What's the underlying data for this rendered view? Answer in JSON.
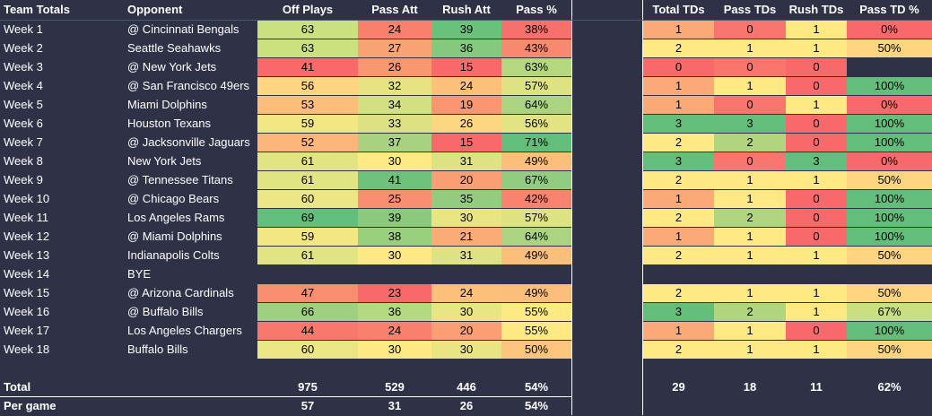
{
  "headers": {
    "team": "Team Totals",
    "opponent": "Opponent",
    "off_plays": "Off Plays",
    "pass_att": "Pass Att",
    "rush_att": "Rush Att",
    "pass_pct": "Pass %",
    "total_tds": "Total TDs",
    "pass_tds": "Pass TDs",
    "rush_tds": "Rush TDs",
    "pass_td_pct": "Pass TD %"
  },
  "rows": [
    {
      "week": "Week 1",
      "opp": "@ Cincinnati Bengals",
      "off": "63",
      "pa": "24",
      "ra": "39",
      "pp": "38%",
      "tt": "1",
      "pt": "0",
      "rt": "1",
      "ptp": "0%",
      "colors": [
        "#cbe07f",
        "#f8806c",
        "#6ac17a",
        "#f8706b",
        "#fba977",
        "#f8756d",
        "#fee983",
        "#f8696b"
      ]
    },
    {
      "week": "Week 2",
      "opp": "Seattle Seahawks",
      "off": "63",
      "pa": "27",
      "ra": "36",
      "pp": "43%",
      "tt": "2",
      "pt": "1",
      "rt": "1",
      "ptp": "50%",
      "colors": [
        "#cbe07f",
        "#f9a373",
        "#84c97d",
        "#f8896f",
        "#ffe984",
        "#ffe984",
        "#fee983",
        "#fdd580"
      ]
    },
    {
      "week": "Week 3",
      "opp": "@ New York Jets",
      "off": "41",
      "pa": "26",
      "ra": "15",
      "pp": "63%",
      "tt": "0",
      "pt": "0",
      "rt": "0",
      "ptp": "",
      "colors": [
        "#f8696b",
        "#f9976f",
        "#f8696b",
        "#b5d87f",
        "#f8696b",
        "#f8756d",
        "#f8696b",
        ""
      ]
    },
    {
      "week": "Week 4",
      "opp": "@ San Francisco 49ers",
      "off": "56",
      "pa": "32",
      "ra": "24",
      "pp": "57%",
      "tt": "1",
      "pt": "1",
      "rt": "0",
      "ptp": "100%",
      "colors": [
        "#fdd580",
        "#e6e482",
        "#fcc07b",
        "#dde382",
        "#fba977",
        "#ffe984",
        "#f8696b",
        "#63be7b"
      ]
    },
    {
      "week": "Week 5",
      "opp": "Miami Dolphins",
      "off": "53",
      "pa": "34",
      "ra": "19",
      "pp": "64%",
      "tt": "1",
      "pt": "0",
      "rt": "1",
      "ptp": "0%",
      "colors": [
        "#fcbd7b",
        "#d3e081",
        "#f99671",
        "#aad480",
        "#fba977",
        "#f8756d",
        "#fee983",
        "#f8696b"
      ]
    },
    {
      "week": "Week 6",
      "opp": "Houston Texans",
      "off": "59",
      "pa": "33",
      "ra": "26",
      "pp": "56%",
      "tt": "3",
      "pt": "3",
      "rt": "0",
      "ptp": "100%",
      "colors": [
        "#f3e783",
        "#dce282",
        "#fdd680",
        "#e2e383",
        "#63be7b",
        "#63be7b",
        "#f8696b",
        "#63be7b"
      ]
    },
    {
      "week": "Week 7",
      "opp": "@ Jacksonville Jaguars",
      "off": "52",
      "pa": "37",
      "ra": "15",
      "pp": "71%",
      "tt": "2",
      "pt": "2",
      "rt": "0",
      "ptp": "100%",
      "colors": [
        "#fbb479",
        "#a8d27f",
        "#f8696b",
        "#63be7b",
        "#ffe984",
        "#b1d57f",
        "#f8696b",
        "#63be7b"
      ]
    },
    {
      "week": "Week 8",
      "opp": "New York Jets",
      "off": "61",
      "pa": "30",
      "ra": "31",
      "pp": "49%",
      "tt": "3",
      "pt": "0",
      "rt": "3",
      "ptp": "0%",
      "colors": [
        "#e1e483",
        "#ffe984",
        "#dde382",
        "#fcbf7b",
        "#63be7b",
        "#f8756d",
        "#63be7b",
        "#f8696b"
      ]
    },
    {
      "week": "Week 9",
      "opp": "@ Tennessee Titans",
      "off": "61",
      "pa": "41",
      "ra": "20",
      "pp": "67%",
      "tt": "2",
      "pt": "1",
      "rt": "1",
      "ptp": "50%",
      "colors": [
        "#e1e483",
        "#6ec17b",
        "#fa9f74",
        "#92cc7e",
        "#ffe984",
        "#ffe984",
        "#fee983",
        "#fdd580"
      ]
    },
    {
      "week": "Week 10",
      "opp": "@ Chicago Bears",
      "off": "60",
      "pa": "25",
      "ra": "35",
      "pp": "42%",
      "tt": "1",
      "pt": "1",
      "rt": "0",
      "ptp": "100%",
      "colors": [
        "#ebe583",
        "#f98f70",
        "#93cc7e",
        "#f8836e",
        "#fba977",
        "#ffe984",
        "#f8696b",
        "#63be7b"
      ]
    },
    {
      "week": "Week 11",
      "opp": "Los Angeles Rams",
      "off": "69",
      "pa": "39",
      "ra": "30",
      "pp": "57%",
      "tt": "2",
      "pt": "2",
      "rt": "0",
      "ptp": "100%",
      "colors": [
        "#63be7b",
        "#8bc97e",
        "#eae583",
        "#dde382",
        "#ffe984",
        "#b1d57f",
        "#f8696b",
        "#63be7b"
      ]
    },
    {
      "week": "Week 12",
      "opp": "@ Miami Dolphins",
      "off": "59",
      "pa": "38",
      "ra": "21",
      "pp": "64%",
      "tt": "1",
      "pt": "1",
      "rt": "0",
      "ptp": "100%",
      "colors": [
        "#f3e783",
        "#9acf7e",
        "#fbab76",
        "#aad480",
        "#fba977",
        "#ffe984",
        "#f8696b",
        "#63be7b"
      ]
    },
    {
      "week": "Week 13",
      "opp": "Indianapolis Colts",
      "off": "61",
      "pa": "30",
      "ra": "31",
      "pp": "49%",
      "tt": "2",
      "pt": "1",
      "rt": "1",
      "ptp": "50%",
      "colors": [
        "#e1e483",
        "#ffe984",
        "#dde382",
        "#fcbf7b",
        "#ffe984",
        "#ffe984",
        "#fee983",
        "#fdd580"
      ]
    },
    {
      "week": "Week 14",
      "opp": "BYE",
      "off": "",
      "pa": "",
      "ra": "",
      "pp": "",
      "tt": "",
      "pt": "",
      "rt": "",
      "ptp": "",
      "colors": [
        "",
        "",
        "",
        "",
        "",
        "",
        "",
        ""
      ]
    },
    {
      "week": "Week 15",
      "opp": "@ Arizona Cardinals",
      "off": "47",
      "pa": "23",
      "ra": "24",
      "pp": "49%",
      "tt": "2",
      "pt": "1",
      "rt": "1",
      "ptp": "50%",
      "colors": [
        "#f98d70",
        "#f8696b",
        "#fcc07b",
        "#fcbf7b",
        "#ffe984",
        "#ffe984",
        "#fee983",
        "#fdd580"
      ]
    },
    {
      "week": "Week 16",
      "opp": "@ Buffalo Bills",
      "off": "66",
      "pa": "36",
      "ra": "30",
      "pp": "55%",
      "tt": "3",
      "pt": "2",
      "rt": "1",
      "ptp": "67%",
      "colors": [
        "#9ed07f",
        "#b6d880",
        "#eae583",
        "#fee983",
        "#63be7b",
        "#b1d57f",
        "#fee983",
        "#c9df82"
      ]
    },
    {
      "week": "Week 17",
      "opp": "Los Angeles Chargers",
      "off": "44",
      "pa": "24",
      "ra": "20",
      "pp": "55%",
      "tt": "1",
      "pt": "1",
      "rt": "0",
      "ptp": "100%",
      "colors": [
        "#f8786c",
        "#f8806c",
        "#fa9f74",
        "#fee983",
        "#fba977",
        "#ffe984",
        "#f8696b",
        "#63be7b"
      ]
    },
    {
      "week": "Week 18",
      "opp": "Buffalo Bills",
      "off": "60",
      "pa": "30",
      "ra": "30",
      "pp": "50%",
      "tt": "2",
      "pt": "1",
      "rt": "1",
      "ptp": "50%",
      "colors": [
        "#ebe583",
        "#ffe984",
        "#eae583",
        "#fdc57c",
        "#ffe984",
        "#ffe984",
        "#fee983",
        "#fdd580"
      ]
    }
  ],
  "total": {
    "label": "Total",
    "off": "975",
    "pa": "529",
    "ra": "446",
    "pp": "54%",
    "tt": "29",
    "pt": "18",
    "rt": "11",
    "ptp": "62%"
  },
  "per_game": {
    "label": "Per game",
    "off": "57",
    "pa": "31",
    "ra": "26",
    "pp": "54%"
  }
}
